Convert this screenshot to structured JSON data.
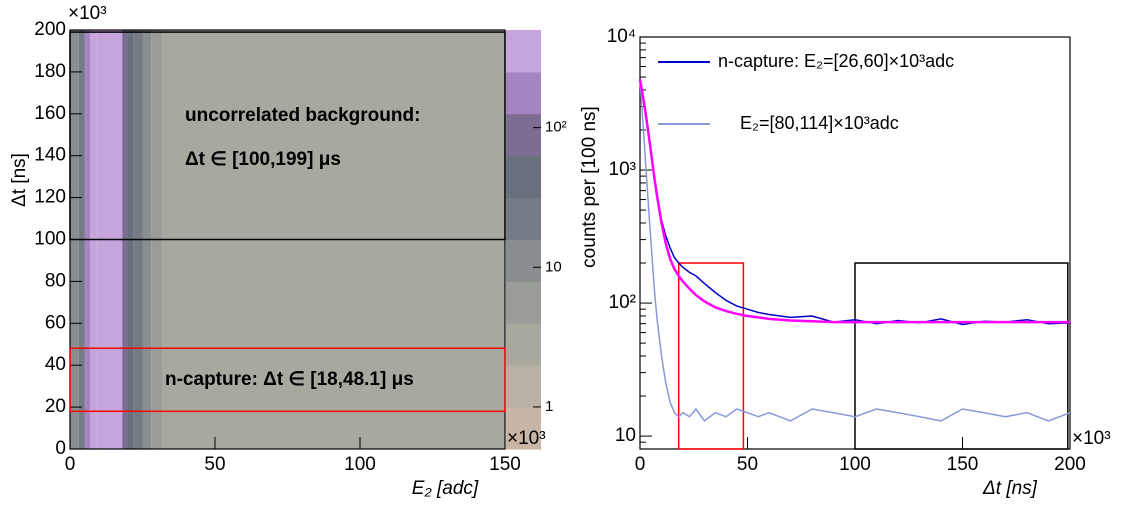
{
  "chart_data": [
    {
      "type": "heatmap",
      "xlabel": "E₂ [adc]",
      "ylabel": "Δt [ns]",
      "x_exponent": "×10³",
      "y_exponent": "×10³",
      "xbins": [
        0,
        3,
        5,
        7,
        9,
        18,
        20,
        22,
        25,
        28,
        32,
        150
      ],
      "values": [
        8,
        30,
        200,
        350,
        300,
        120,
        60,
        30,
        12,
        5,
        2.5
      ],
      "xlim": [
        0,
        150
      ],
      "xticks": [
        0,
        50,
        100,
        150
      ],
      "ylim": [
        0,
        200
      ],
      "yticks": [
        0,
        20,
        40,
        60,
        80,
        100,
        120,
        140,
        160,
        180,
        200
      ],
      "zlim": [
        0.5,
        500
      ],
      "zlog": true,
      "zticks": [
        1,
        10,
        {
          "value": 100,
          "label": "10²"
        }
      ],
      "palette": [
        "#c8b5a5",
        "#b8b2a6",
        "#a8a89f",
        "#9a9c97",
        "#8a8e90",
        "#757b85",
        "#68707e",
        "#7c6e92",
        "#a585c0",
        "#c6a4dc"
      ],
      "regions": [
        {
          "x": [
            0,
            150
          ],
          "y": [
            100,
            199
          ],
          "color": "#000000"
        },
        {
          "x": [
            0,
            150
          ],
          "y": [
            18,
            48.1
          ],
          "color": "#ff0000"
        }
      ],
      "annotations": [
        "uncorrelated background:",
        "Δt ∈ [100,199] μs",
        "n-capture: Δt ∈ [18,48.1] μs"
      ]
    },
    {
      "type": "line",
      "ylog": true,
      "xlabel": "Δt [ns]",
      "ylabel": "counts per [100 ns]",
      "x_exponent": "×10³",
      "x": [
        0,
        1,
        2,
        3,
        4,
        5,
        6,
        7,
        8,
        10,
        12,
        14,
        16,
        18,
        20,
        23,
        26,
        30,
        35,
        40,
        45,
        50,
        55,
        60,
        70,
        80,
        90,
        100,
        110,
        120,
        130,
        140,
        150,
        160,
        170,
        180,
        190,
        200
      ],
      "series": [
        {
          "name": "n-capture: E₂=[26,60]×10³adc",
          "color": "#0000cc",
          "values": [
            4800,
            4000,
            3200,
            2500,
            1900,
            1400,
            1050,
            800,
            620,
            420,
            320,
            260,
            220,
            200,
            185,
            170,
            160,
            140,
            120,
            105,
            95,
            90,
            85,
            82,
            78,
            80,
            72,
            75,
            70,
            74,
            71,
            76,
            69,
            73,
            72,
            75,
            70,
            71
          ]
        },
        {
          "name": "E₂=[80,114]×10³adc",
          "color": "#8899d9",
          "values": [
            4800,
            2800,
            1600,
            900,
            520,
            300,
            180,
            110,
            75,
            40,
            25,
            18,
            15,
            14,
            15,
            14,
            16,
            13,
            15,
            14,
            16,
            15,
            14,
            15,
            13,
            16,
            15,
            14,
            16,
            15,
            14,
            13,
            16,
            15,
            14,
            15,
            13,
            15
          ]
        },
        {
          "color": "#ff00ff",
          "values": [
            4800,
            3900,
            3100,
            2400,
            1850,
            1400,
            1060,
            810,
            630,
            400,
            280,
            215,
            180,
            160,
            145,
            128,
            115,
            103,
            93,
            87,
            83,
            80,
            78,
            76,
            74,
            73,
            72,
            72,
            72,
            72,
            72,
            72,
            72,
            72,
            72,
            72,
            72,
            72
          ]
        }
      ],
      "xlim": [
        0,
        200
      ],
      "xticks": [
        0,
        50,
        100,
        150,
        200
      ],
      "ylim": [
        8,
        10000
      ],
      "yticks": [
        10,
        {
          "value": 100,
          "label": "10²"
        },
        {
          "value": 1000,
          "label": "10³"
        },
        {
          "value": 10000,
          "label": "10⁴"
        }
      ],
      "regions": [
        {
          "x": [
            18,
            48.1
          ],
          "y": [
            8,
            200
          ],
          "color": "#ff0000"
        },
        {
          "x": [
            100,
            199
          ],
          "y": [
            8,
            200
          ],
          "color": "#000000"
        }
      ]
    }
  ]
}
